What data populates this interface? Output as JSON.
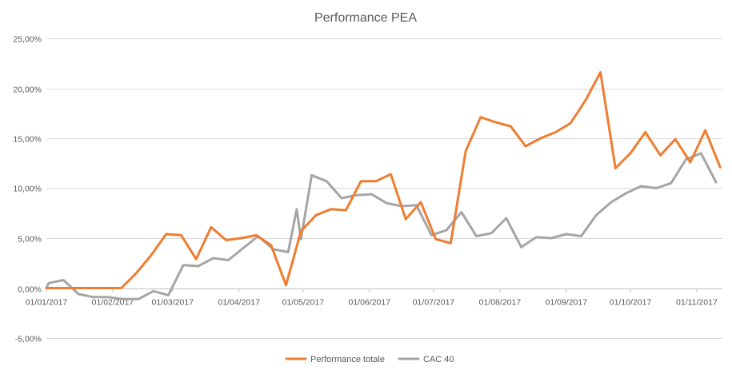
{
  "chart_data": {
    "type": "line",
    "title": "Performance PEA",
    "xlabel": "",
    "ylabel": "",
    "ylim": [
      -0.05,
      0.25
    ],
    "xlim": [
      "2017-01-01",
      "2017-11-13"
    ],
    "grid": true,
    "legend_position": "bottom",
    "y_ticks": [
      {
        "value": -0.05,
        "label": "-5,00%"
      },
      {
        "value": 0.0,
        "label": "0,00%"
      },
      {
        "value": 0.05,
        "label": "5,00%"
      },
      {
        "value": 0.1,
        "label": "10,00%"
      },
      {
        "value": 0.15,
        "label": "15,00%"
      },
      {
        "value": 0.2,
        "label": "20,00%"
      },
      {
        "value": 0.25,
        "label": "25,00%"
      }
    ],
    "x_ticks": [
      {
        "value": "2017-01-01",
        "label": "01/01/2017"
      },
      {
        "value": "2017-02-01",
        "label": "01/02/2017"
      },
      {
        "value": "2017-03-01",
        "label": "01/03/2017"
      },
      {
        "value": "2017-04-01",
        "label": "01/04/2017"
      },
      {
        "value": "2017-05-01",
        "label": "01/05/2017"
      },
      {
        "value": "2017-06-01",
        "label": "01/06/2017"
      },
      {
        "value": "2017-07-01",
        "label": "01/07/2017"
      },
      {
        "value": "2017-08-01",
        "label": "01/08/2017"
      },
      {
        "value": "2017-09-01",
        "label": "01/09/2017"
      },
      {
        "value": "2017-10-01",
        "label": "01/10/2017"
      },
      {
        "value": "2017-11-01",
        "label": "01/11/2017"
      }
    ],
    "series": [
      {
        "name": "Performance totale",
        "color": "#ed7d31",
        "points": [
          [
            "2017-01-01",
            0.0
          ],
          [
            "2017-01-08",
            0.0
          ],
          [
            "2017-01-15",
            0.0
          ],
          [
            "2017-01-22",
            0.0
          ],
          [
            "2017-01-29",
            0.0
          ],
          [
            "2017-02-05",
            0.0
          ],
          [
            "2017-02-12",
            0.015
          ],
          [
            "2017-02-19",
            0.033
          ],
          [
            "2017-02-26",
            0.054
          ],
          [
            "2017-03-05",
            0.053
          ],
          [
            "2017-03-12",
            0.029
          ],
          [
            "2017-03-19",
            0.061
          ],
          [
            "2017-03-26",
            0.048
          ],
          [
            "2017-04-02",
            0.05
          ],
          [
            "2017-04-09",
            0.053
          ],
          [
            "2017-04-16",
            0.043
          ],
          [
            "2017-04-23",
            0.003
          ],
          [
            "2017-04-30",
            0.057
          ],
          [
            "2017-05-07",
            0.073
          ],
          [
            "2017-05-14",
            0.079
          ],
          [
            "2017-05-21",
            0.078
          ],
          [
            "2017-05-28",
            0.107
          ],
          [
            "2017-06-04",
            0.107
          ],
          [
            "2017-06-11",
            0.114
          ],
          [
            "2017-06-18",
            0.069
          ],
          [
            "2017-06-25",
            0.086
          ],
          [
            "2017-07-02",
            0.049
          ],
          [
            "2017-07-09",
            0.045
          ],
          [
            "2017-07-16",
            0.137
          ],
          [
            "2017-07-23",
            0.171
          ],
          [
            "2017-07-30",
            0.166
          ],
          [
            "2017-08-06",
            0.162
          ],
          [
            "2017-08-13",
            0.142
          ],
          [
            "2017-08-20",
            0.15
          ],
          [
            "2017-08-27",
            0.156
          ],
          [
            "2017-09-03",
            0.165
          ],
          [
            "2017-09-10",
            0.188
          ],
          [
            "2017-09-17",
            0.216
          ],
          [
            "2017-09-24",
            0.12
          ],
          [
            "2017-10-01",
            0.135
          ],
          [
            "2017-10-08",
            0.156
          ],
          [
            "2017-10-15",
            0.133
          ],
          [
            "2017-10-22",
            0.149
          ],
          [
            "2017-10-29",
            0.126
          ],
          [
            "2017-11-05",
            0.158
          ],
          [
            "2017-11-12",
            0.121
          ]
        ]
      },
      {
        "name": "CAC 40",
        "color": "#a5a5a5",
        "points": [
          [
            "2017-01-01",
            0.0
          ],
          [
            "2017-01-02",
            0.005
          ],
          [
            "2017-01-09",
            0.008
          ],
          [
            "2017-01-16",
            -0.006
          ],
          [
            "2017-01-23",
            -0.009
          ],
          [
            "2017-01-30",
            -0.009
          ],
          [
            "2017-02-06",
            -0.011
          ],
          [
            "2017-02-13",
            -0.011
          ],
          [
            "2017-02-20",
            -0.003
          ],
          [
            "2017-02-27",
            -0.007
          ],
          [
            "2017-03-06",
            0.023
          ],
          [
            "2017-03-13",
            0.022
          ],
          [
            "2017-03-20",
            0.03
          ],
          [
            "2017-03-27",
            0.028
          ],
          [
            "2017-04-03",
            0.04
          ],
          [
            "2017-04-10",
            0.052
          ],
          [
            "2017-04-17",
            0.039
          ],
          [
            "2017-04-24",
            0.036
          ],
          [
            "2017-04-28",
            0.079
          ],
          [
            "2017-04-30",
            0.049
          ],
          [
            "2017-05-05",
            0.113
          ],
          [
            "2017-05-12",
            0.107
          ],
          [
            "2017-05-19",
            0.09
          ],
          [
            "2017-05-26",
            0.093
          ],
          [
            "2017-06-02",
            0.094
          ],
          [
            "2017-06-09",
            0.085
          ],
          [
            "2017-06-16",
            0.082
          ],
          [
            "2017-06-23",
            0.083
          ],
          [
            "2017-06-30",
            0.053
          ],
          [
            "2017-07-07",
            0.058
          ],
          [
            "2017-07-14",
            0.076
          ],
          [
            "2017-07-21",
            0.052
          ],
          [
            "2017-07-28",
            0.055
          ],
          [
            "2017-08-04",
            0.07
          ],
          [
            "2017-08-11",
            0.041
          ],
          [
            "2017-08-18",
            0.051
          ],
          [
            "2017-08-25",
            0.05
          ],
          [
            "2017-09-01",
            0.054
          ],
          [
            "2017-09-08",
            0.052
          ],
          [
            "2017-09-15",
            0.073
          ],
          [
            "2017-09-22",
            0.086
          ],
          [
            "2017-09-29",
            0.095
          ],
          [
            "2017-10-06",
            0.102
          ],
          [
            "2017-10-13",
            0.1
          ],
          [
            "2017-10-20",
            0.105
          ],
          [
            "2017-10-27",
            0.129
          ],
          [
            "2017-11-03",
            0.135
          ],
          [
            "2017-11-10",
            0.106
          ]
        ]
      }
    ]
  }
}
